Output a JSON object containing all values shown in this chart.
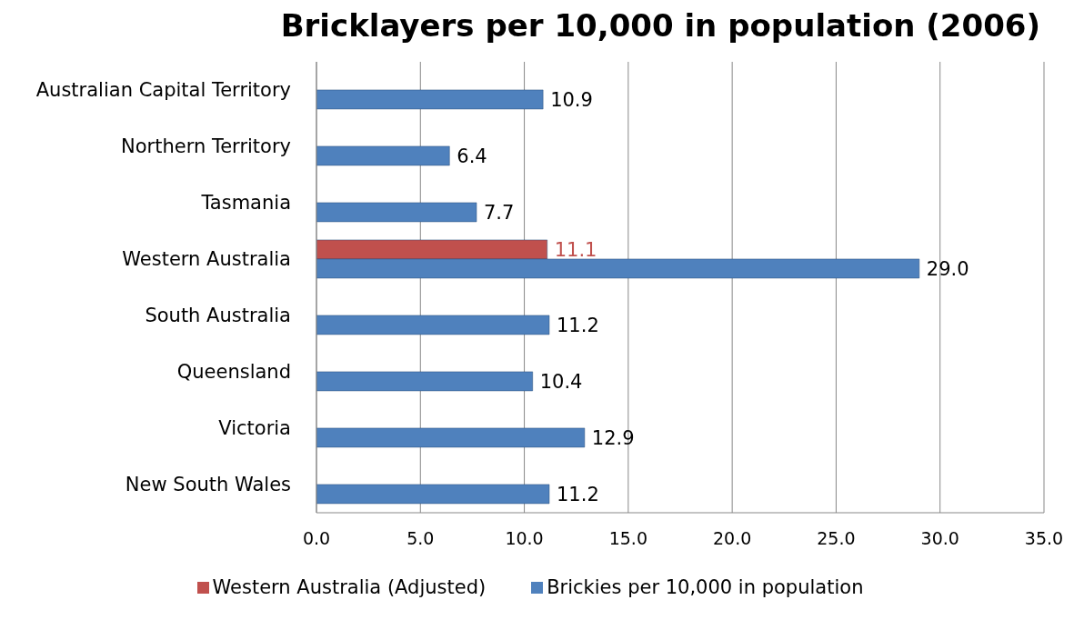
{
  "chart_data": {
    "type": "bar",
    "orientation": "horizontal",
    "title": "Bricklayers per 10,000 in population (2006)",
    "categories": [
      "Australian Capital Territory",
      "Northern Territory",
      "Tasmania",
      "Western Australia",
      "South Australia",
      "Queensland",
      "Victoria",
      "New South Wales"
    ],
    "series": [
      {
        "name": "Western Australia (Adjusted)",
        "color": "#c0504d",
        "values": [
          null,
          null,
          null,
          11.1,
          null,
          null,
          null,
          null
        ],
        "value_labels": [
          null,
          null,
          null,
          "11.1",
          null,
          null,
          null,
          null
        ]
      },
      {
        "name": "Brickies per 10,000 in population",
        "color": "#4f81bd",
        "values": [
          10.9,
          6.4,
          7.7,
          29.0,
          11.2,
          10.4,
          12.9,
          11.2
        ],
        "value_labels": [
          "10.9",
          "6.4",
          "7.7",
          "29.0",
          "11.2",
          "10.4",
          "12.9",
          "11.2"
        ]
      }
    ],
    "xlim": [
      0,
      35
    ],
    "xticks": [
      {
        "value": 0,
        "label": "0.0"
      },
      {
        "value": 5,
        "label": "5.0"
      },
      {
        "value": 10,
        "label": "10.0"
      },
      {
        "value": 15,
        "label": "15.0"
      },
      {
        "value": 20,
        "label": "20.0"
      },
      {
        "value": 25,
        "label": "25.0"
      },
      {
        "value": 30,
        "label": "30.0"
      },
      {
        "value": 35,
        "label": "35.0"
      }
    ],
    "grid": "x",
    "legend": "bottom"
  }
}
